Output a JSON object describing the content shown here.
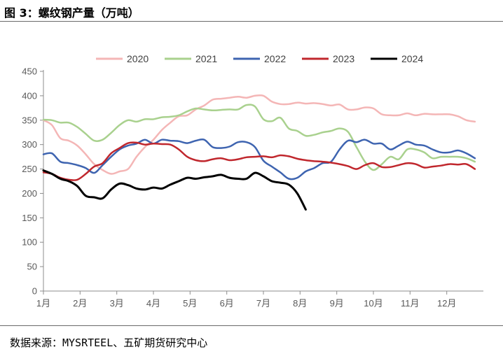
{
  "title": "图 3：螺纹钢产量（万吨）",
  "source": "数据来源：MYSRTEEL、五矿期货研究中心",
  "chart_data": {
    "type": "line",
    "title": "螺纹钢产量（万吨）",
    "xlabel": "",
    "ylabel": "",
    "x_range": [
      0,
      52
    ],
    "ylim": [
      0,
      450
    ],
    "yticks": [
      0,
      50,
      100,
      150,
      200,
      250,
      300,
      350,
      400,
      450
    ],
    "yticks_labels": [
      "0",
      "50",
      "100",
      "150",
      "200",
      "250",
      "300",
      "350",
      "400",
      "450"
    ],
    "xtick_positions": [
      0,
      4.33,
      8.67,
      13,
      17.33,
      21.67,
      26,
      30.33,
      34.67,
      39,
      43.33,
      47.67
    ],
    "xtick_labels": [
      "1月",
      "2月",
      "3月",
      "4月",
      "5月",
      "6月",
      "7月",
      "8月",
      "9月",
      "10月",
      "11月",
      "12月"
    ],
    "grid": false,
    "legend_position": "top",
    "series": [
      {
        "name": "2020",
        "color": "#F4B6B6",
        "x": [
          0,
          1,
          2,
          3,
          4,
          5,
          6,
          7,
          8,
          9,
          10,
          11,
          12,
          13,
          14,
          15,
          16,
          17,
          18,
          19,
          20,
          21,
          22,
          23,
          24,
          25,
          26,
          27,
          28,
          29,
          30,
          31,
          32,
          33,
          34,
          35,
          36,
          37,
          38,
          39,
          40,
          41,
          42,
          43,
          44,
          45,
          46,
          47,
          48,
          49,
          50,
          51
        ],
        "values": [
          350,
          340,
          313,
          308,
          298,
          280,
          260,
          248,
          240,
          245,
          250,
          275,
          295,
          310,
          330,
          345,
          358,
          360,
          372,
          380,
          392,
          394,
          396,
          398,
          396,
          400,
          400,
          388,
          383,
          383,
          386,
          384,
          385,
          383,
          380,
          382,
          372,
          372,
          376,
          374,
          362,
          360,
          360,
          364,
          360,
          363,
          362,
          362,
          362,
          358,
          350,
          347
        ]
      },
      {
        "name": "2021",
        "color": "#A9D18E",
        "x": [
          0,
          1,
          2,
          3,
          4,
          5,
          6,
          7,
          8,
          9,
          10,
          11,
          12,
          13,
          14,
          15,
          16,
          17,
          18,
          19,
          20,
          21,
          22,
          23,
          24,
          25,
          26,
          27,
          28,
          29,
          30,
          31,
          32,
          33,
          34,
          35,
          36,
          37,
          38,
          39,
          40,
          41,
          42,
          43,
          44,
          45,
          46,
          47,
          48,
          49,
          50,
          51
        ],
        "values": [
          351,
          350,
          345,
          345,
          336,
          322,
          308,
          310,
          324,
          340,
          350,
          347,
          352,
          352,
          356,
          357,
          360,
          368,
          374,
          372,
          370,
          371,
          372,
          372,
          381,
          378,
          352,
          348,
          355,
          333,
          328,
          318,
          320,
          325,
          328,
          333,
          326,
          295,
          265,
          248,
          260,
          275,
          270,
          290,
          290,
          284,
          272,
          275,
          275,
          275,
          272,
          265
        ]
      },
      {
        "name": "2022",
        "color": "#3E64B0",
        "x": [
          0,
          1,
          2,
          3,
          4,
          5,
          6,
          7,
          8,
          9,
          10,
          11,
          12,
          13,
          14,
          15,
          16,
          17,
          18,
          19,
          20,
          21,
          22,
          23,
          24,
          25,
          26,
          27,
          28,
          29,
          30,
          31,
          32,
          33,
          34,
          35,
          36,
          37,
          38,
          39,
          40,
          41,
          42,
          43,
          44,
          45,
          46,
          47,
          48,
          49,
          50,
          51
        ],
        "values": [
          280,
          282,
          265,
          262,
          258,
          252,
          242,
          258,
          275,
          290,
          298,
          302,
          310,
          302,
          310,
          308,
          307,
          303,
          308,
          310,
          295,
          293,
          296,
          305,
          305,
          295,
          267,
          255,
          243,
          230,
          232,
          245,
          252,
          262,
          265,
          290,
          308,
          305,
          310,
          302,
          302,
          290,
          298,
          306,
          300,
          298,
          290,
          284,
          284,
          288,
          282,
          272
        ]
      },
      {
        "name": "2023",
        "color": "#C0272D",
        "x": [
          0,
          1,
          2,
          3,
          4,
          5,
          6,
          7,
          8,
          9,
          10,
          11,
          12,
          13,
          14,
          15,
          16,
          17,
          18,
          19,
          20,
          21,
          22,
          23,
          24,
          25,
          26,
          27,
          28,
          29,
          30,
          31,
          32,
          33,
          34,
          35,
          36,
          37,
          38,
          39,
          40,
          41,
          42,
          43,
          44,
          45,
          46,
          47,
          48,
          49,
          50,
          51
        ],
        "values": [
          243,
          240,
          232,
          228,
          228,
          240,
          255,
          262,
          282,
          293,
          303,
          304,
          300,
          302,
          301,
          300,
          290,
          275,
          268,
          266,
          270,
          272,
          268,
          270,
          274,
          275,
          276,
          274,
          278,
          276,
          271,
          268,
          266,
          265,
          263,
          260,
          256,
          250,
          258,
          262,
          254,
          254,
          258,
          262,
          260,
          253,
          255,
          257,
          260,
          259,
          260,
          250
        ]
      },
      {
        "name": "2024",
        "color": "#000000",
        "x": [
          0,
          1,
          2,
          3,
          4,
          5,
          6,
          7,
          8,
          9,
          10,
          11,
          12,
          13,
          14,
          15,
          16,
          17,
          18,
          19,
          20,
          21,
          22,
          23,
          24,
          25,
          26,
          27,
          28,
          29,
          30,
          31
        ],
        "values": [
          247,
          240,
          230,
          225,
          215,
          195,
          192,
          190,
          208,
          220,
          217,
          210,
          208,
          212,
          210,
          218,
          225,
          232,
          230,
          233,
          235,
          238,
          232,
          230,
          230,
          242,
          235,
          225,
          222,
          218,
          200,
          167
        ]
      }
    ]
  }
}
